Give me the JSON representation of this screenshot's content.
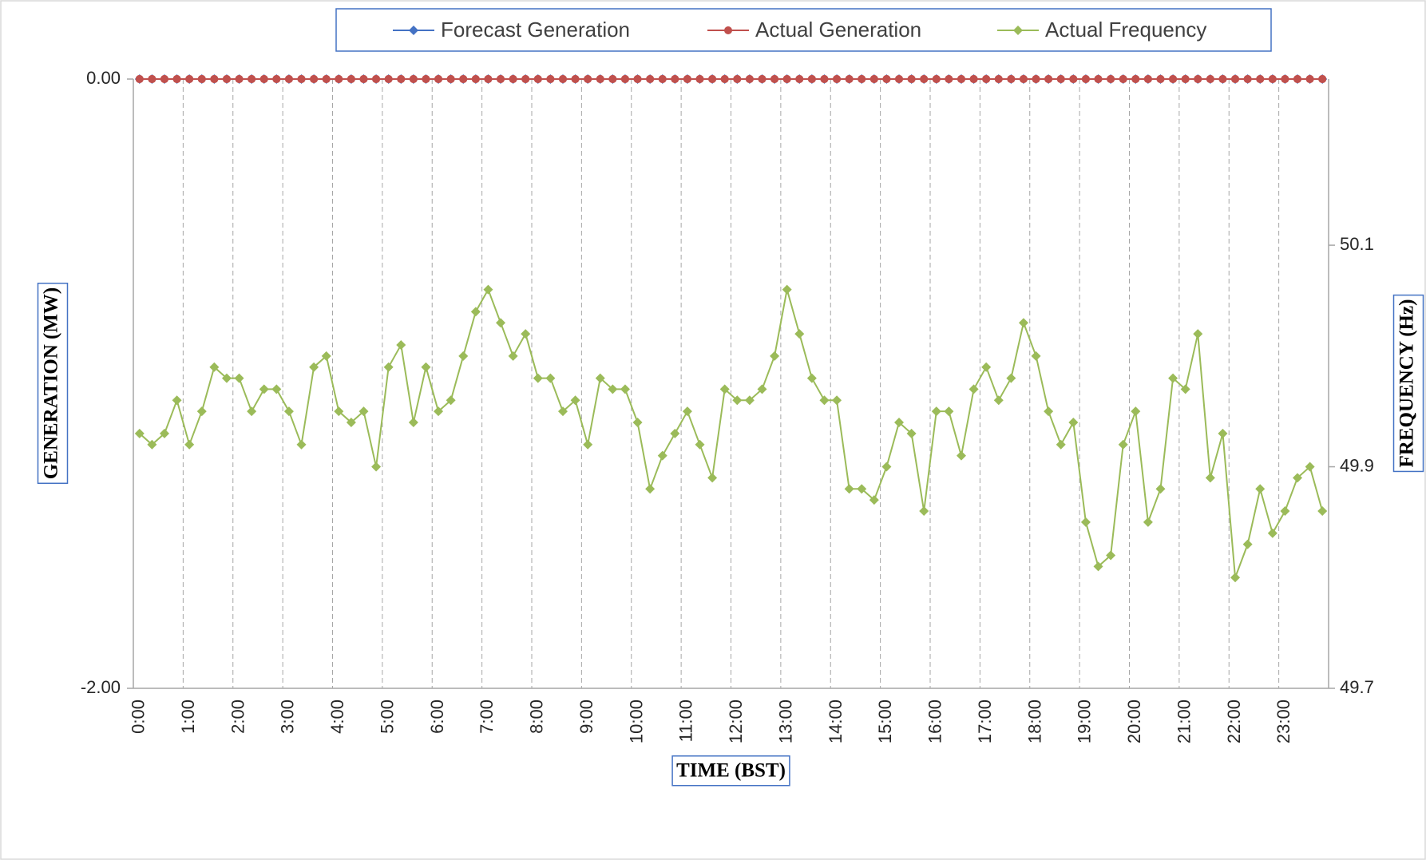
{
  "chart_data": {
    "type": "line",
    "categories": [
      "0:00",
      null,
      null,
      null,
      "1:00",
      null,
      null,
      null,
      "2:00",
      null,
      null,
      null,
      "3:00",
      null,
      null,
      null,
      "4:00",
      null,
      null,
      null,
      "5:00",
      null,
      null,
      null,
      "6:00",
      null,
      null,
      null,
      "7:00",
      null,
      null,
      null,
      "8:00",
      null,
      null,
      null,
      "9:00",
      null,
      null,
      null,
      "10:00",
      null,
      null,
      null,
      "11:00",
      null,
      null,
      null,
      "12:00",
      null,
      null,
      null,
      "13:00",
      null,
      null,
      null,
      "14:00",
      null,
      null,
      null,
      "15:00",
      null,
      null,
      null,
      "16:00",
      null,
      null,
      null,
      "17:00",
      null,
      null,
      null,
      "18:00",
      null,
      null,
      null,
      "19:00",
      null,
      null,
      null,
      "20:00",
      null,
      null,
      null,
      "21:00",
      null,
      null,
      null,
      "22:00",
      null,
      null,
      null,
      "23:00",
      null,
      null,
      null
    ],
    "series": [
      {
        "name": "Forecast Generation",
        "color": "#4472c4",
        "marker": "diamond",
        "axis": "y",
        "values": [
          0,
          0,
          0,
          0,
          0,
          0,
          0,
          0,
          0,
          0,
          0,
          0,
          0,
          0,
          0,
          0,
          0,
          0,
          0,
          0,
          0,
          0,
          0,
          0,
          0,
          0,
          0,
          0,
          0,
          0,
          0,
          0,
          0,
          0,
          0,
          0,
          0,
          0,
          0,
          0,
          0,
          0,
          0,
          0,
          0,
          0,
          0,
          0,
          0,
          0,
          0,
          0,
          0,
          0,
          0,
          0,
          0,
          0,
          0,
          0,
          0,
          0,
          0,
          0,
          0,
          0,
          0,
          0,
          0,
          0,
          0,
          0,
          0,
          0,
          0,
          0,
          0,
          0,
          0,
          0,
          0,
          0,
          0,
          0,
          0,
          0,
          0,
          0,
          0,
          0,
          0,
          0,
          0,
          0,
          0,
          0
        ]
      },
      {
        "name": "Actual Generation",
        "color": "#c0504d",
        "marker": "circle",
        "axis": "y",
        "values": [
          0,
          0,
          0,
          0,
          0,
          0,
          0,
          0,
          0,
          0,
          0,
          0,
          0,
          0,
          0,
          0,
          0,
          0,
          0,
          0,
          0,
          0,
          0,
          0,
          0,
          0,
          0,
          0,
          0,
          0,
          0,
          0,
          0,
          0,
          0,
          0,
          0,
          0,
          0,
          0,
          0,
          0,
          0,
          0,
          0,
          0,
          0,
          0,
          0,
          0,
          0,
          0,
          0,
          0,
          0,
          0,
          0,
          0,
          0,
          0,
          0,
          0,
          0,
          0,
          0,
          0,
          0,
          0,
          0,
          0,
          0,
          0,
          0,
          0,
          0,
          0,
          0,
          0,
          0,
          0,
          0,
          0,
          0,
          0,
          0,
          0,
          0,
          0,
          0,
          0,
          0,
          0,
          0,
          0,
          0,
          0
        ]
      },
      {
        "name": "Actual Frequency",
        "color": "#9bbb59",
        "marker": "diamond",
        "axis": "y2",
        "values": [
          49.93,
          49.92,
          49.93,
          49.96,
          49.92,
          49.95,
          49.99,
          49.98,
          49.98,
          49.95,
          49.97,
          49.97,
          49.95,
          49.92,
          49.99,
          50.0,
          49.95,
          49.94,
          49.95,
          49.9,
          49.99,
          50.01,
          49.94,
          49.99,
          49.95,
          49.96,
          50.0,
          50.04,
          50.06,
          50.03,
          50.0,
          50.02,
          49.98,
          49.98,
          49.95,
          49.96,
          49.92,
          49.98,
          49.97,
          49.97,
          49.94,
          49.88,
          49.91,
          49.93,
          49.95,
          49.92,
          49.89,
          49.97,
          49.96,
          49.96,
          49.97,
          50.0,
          50.06,
          50.02,
          49.98,
          49.96,
          49.96,
          49.88,
          49.88,
          49.87,
          49.9,
          49.94,
          49.93,
          49.86,
          49.95,
          49.95,
          49.91,
          49.97,
          49.99,
          49.96,
          49.98,
          50.03,
          50.0,
          49.95,
          49.92,
          49.94,
          49.85,
          49.81,
          49.82,
          49.92,
          49.95,
          49.85,
          49.88,
          49.98,
          49.97,
          50.02,
          49.89,
          49.93,
          49.8,
          49.83,
          49.88,
          49.84,
          49.86,
          49.89,
          49.9,
          49.86
        ]
      }
    ],
    "ylim": [
      -2,
      0
    ],
    "yticks": [
      {
        "value": -2,
        "label": "-2.00"
      },
      {
        "value": 0,
        "label": "0.00"
      }
    ],
    "y2lim": [
      49.7,
      50.25
    ],
    "y2ticks": [
      49.7,
      49.9,
      50.1
    ],
    "x_label": "TIME (BST)",
    "y_label": "GENERATION (MW)",
    "y2_label": "FREQUENCY (Hz)",
    "grid": true,
    "legend": "top"
  }
}
